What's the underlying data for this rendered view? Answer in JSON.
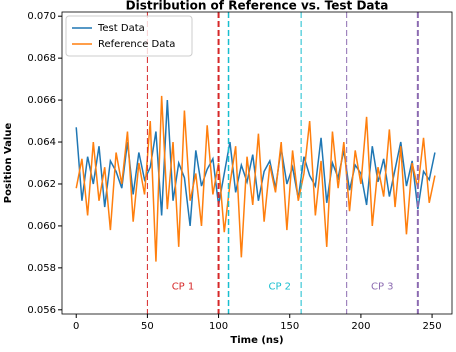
{
  "chart_data": {
    "type": "line",
    "title": "Distribution of Reference vs. Test Data",
    "xlabel": "Time (ns)",
    "ylabel": "Position Value",
    "x": [
      0,
      4,
      8,
      12,
      16,
      20,
      24,
      28,
      32,
      36,
      40,
      44,
      48,
      52,
      56,
      60,
      64,
      68,
      72,
      76,
      80,
      84,
      88,
      92,
      96,
      100,
      104,
      108,
      112,
      116,
      120,
      124,
      128,
      132,
      136,
      140,
      144,
      148,
      152,
      156,
      160,
      164,
      168,
      172,
      176,
      180,
      184,
      188,
      192,
      196,
      200,
      204,
      208,
      212,
      216,
      220,
      224,
      228,
      232,
      236,
      240,
      244,
      248,
      252
    ],
    "series": [
      {
        "name": "Test Data",
        "color": "#1f77b4",
        "values": [
          0.0647,
          0.0612,
          0.0633,
          0.062,
          0.0638,
          0.0609,
          0.0631,
          0.0626,
          0.0618,
          0.064,
          0.0615,
          0.0635,
          0.0622,
          0.0628,
          0.0645,
          0.0605,
          0.066,
          0.0612,
          0.063,
          0.0623,
          0.06,
          0.0636,
          0.0619,
          0.0627,
          0.0632,
          0.061,
          0.0625,
          0.064,
          0.0616,
          0.0629,
          0.0621,
          0.0634,
          0.0612,
          0.0626,
          0.0631,
          0.0618,
          0.0637,
          0.062,
          0.0628,
          0.0613,
          0.0633,
          0.0624,
          0.0619,
          0.0642,
          0.0611,
          0.063,
          0.0623,
          0.0636,
          0.0617,
          0.0629,
          0.0625,
          0.061,
          0.0638,
          0.0621,
          0.0632,
          0.0614,
          0.0627,
          0.064,
          0.0619,
          0.0631,
          0.0608,
          0.0626,
          0.0622,
          0.0635
        ]
      },
      {
        "name": "Reference Data",
        "color": "#ff7f0e",
        "values": [
          0.0618,
          0.0632,
          0.0605,
          0.064,
          0.0612,
          0.0628,
          0.0598,
          0.0635,
          0.062,
          0.0645,
          0.0602,
          0.063,
          0.0615,
          0.065,
          0.0583,
          0.0662,
          0.0608,
          0.064,
          0.059,
          0.0655,
          0.0612,
          0.0625,
          0.06,
          0.0648,
          0.0615,
          0.063,
          0.0597,
          0.062,
          0.0638,
          0.0585,
          0.0633,
          0.061,
          0.0644,
          0.0602,
          0.0629,
          0.0616,
          0.064,
          0.0598,
          0.0636,
          0.0612,
          0.0625,
          0.065,
          0.0605,
          0.0631,
          0.059,
          0.0645,
          0.0618,
          0.064,
          0.0607,
          0.0636,
          0.062,
          0.0652,
          0.06,
          0.0628,
          0.0614,
          0.0646,
          0.0609,
          0.0638,
          0.0596,
          0.063,
          0.0618,
          0.0642,
          0.0611,
          0.0624
        ]
      }
    ],
    "xlim": [
      -10,
      264
    ],
    "xticks": [
      0,
      50,
      100,
      150,
      200,
      250
    ],
    "ylim": [
      0.0558,
      0.0702
    ],
    "yticks": [
      0.056,
      0.058,
      {
        "value": 0.06,
        "label": "0.060"
      },
      0.062,
      0.064,
      0.066,
      0.068,
      {
        "value": 0.07,
        "label": "0.070"
      }
    ],
    "grid": false,
    "legend": "upper left",
    "vlines": [
      {
        "x": 50,
        "color": "#d62728",
        "linewidth": 1
      },
      {
        "x": 100,
        "color": "#d62728",
        "linewidth": 2
      },
      {
        "x": 107,
        "color": "#17becf",
        "linewidth": 1.5
      },
      {
        "x": 158,
        "color": "#17becf",
        "linewidth": 1
      },
      {
        "x": 190,
        "color": "#8c6bb1",
        "linewidth": 1
      },
      {
        "x": 240,
        "color": "#8c6bb1",
        "linewidth": 2
      }
    ],
    "annotations": [
      {
        "text": "CP 1",
        "x": 75,
        "y": 0.0571,
        "color": "#d62728"
      },
      {
        "text": "CP 2",
        "x": 143,
        "y": 0.0571,
        "color": "#17becf"
      },
      {
        "text": "CP 3",
        "x": 215,
        "y": 0.0571,
        "color": "#8c6bb1"
      }
    ]
  }
}
